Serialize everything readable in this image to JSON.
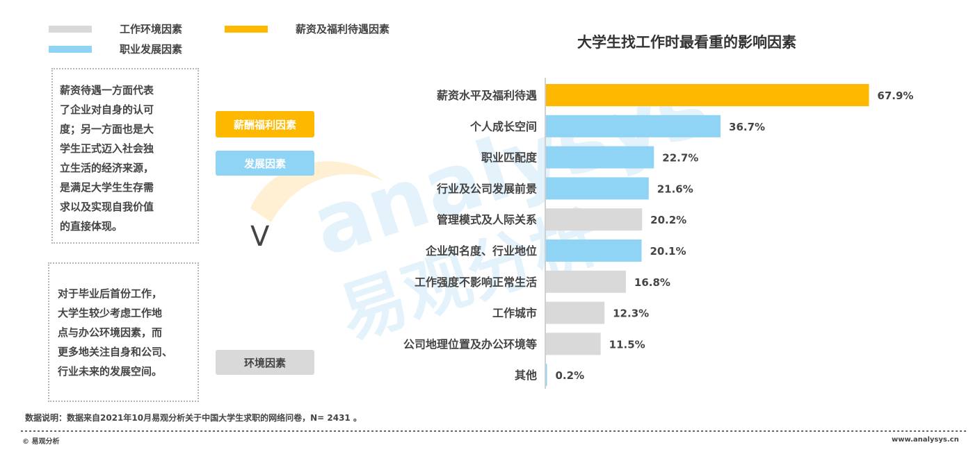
{
  "legend": [
    {
      "label": "工作环境因素",
      "color": "#d9d9d9"
    },
    {
      "label": "薪资及福利待遇因素",
      "color": "#ffb800"
    },
    {
      "label": "职业发展因素",
      "color": "#8fd4f5"
    }
  ],
  "left_box_top": {
    "lines": [
      "薪资待遇一方面代表",
      "了企业对自身的认可",
      "度；另一方面也是大",
      "学生正式迈入社会独",
      "立生活的经济来源，",
      "是满足大学生生存需",
      "求以及实现自我价值",
      "的直接体现。"
    ]
  },
  "left_box_bottom": {
    "lines": [
      "对于毕业后首份工作，",
      "大学生较少考虑工作地",
      "点与办公环境因素，而",
      "更多地关注自身和公司、",
      "行业未来的发展空间。"
    ]
  },
  "pills": {
    "salary": "薪酬福利因素",
    "development": "发展因素",
    "environment": "环境因素",
    "comparator": "V"
  },
  "colors": {
    "salary": "#ffb800",
    "development": "#8fd4f5",
    "environment": "#d9d9d9"
  },
  "chart_data": {
    "type": "bar",
    "orientation": "horizontal",
    "title": "大学生找工作时最看重的影响因素",
    "categories": [
      "薪资水平及福利待遇",
      "个人成长空间",
      "职业匹配度",
      "行业及公司发展前景",
      "管理模式及人际关系",
      "企业知名度、行业地位",
      "工作强度不影响正常生活",
      "工作城市",
      "公司地理位置及办公环境等",
      "其他"
    ],
    "values": [
      67.9,
      36.7,
      22.7,
      21.6,
      20.2,
      20.1,
      16.8,
      12.3,
      11.5,
      0.2
    ],
    "value_labels": [
      "67.9%",
      "36.7%",
      "22.7%",
      "21.6%",
      "20.2%",
      "20.1%",
      "16.8%",
      "12.3%",
      "11.5%",
      "0.2%"
    ],
    "groups": [
      "salary",
      "development",
      "development",
      "development",
      "environment",
      "development",
      "environment",
      "environment",
      "environment",
      "development"
    ],
    "xlim": [
      0,
      70
    ],
    "grid": false
  },
  "footnote": "数据说明：数据来自2021年10月易观分析关于中国大学生求职的网络问卷，N= 2431 。",
  "footer": {
    "left": "© 易观分析",
    "right": "www.analysys.cn"
  },
  "watermark": {
    "latin": "analysys",
    "chinese": "易观分析"
  }
}
